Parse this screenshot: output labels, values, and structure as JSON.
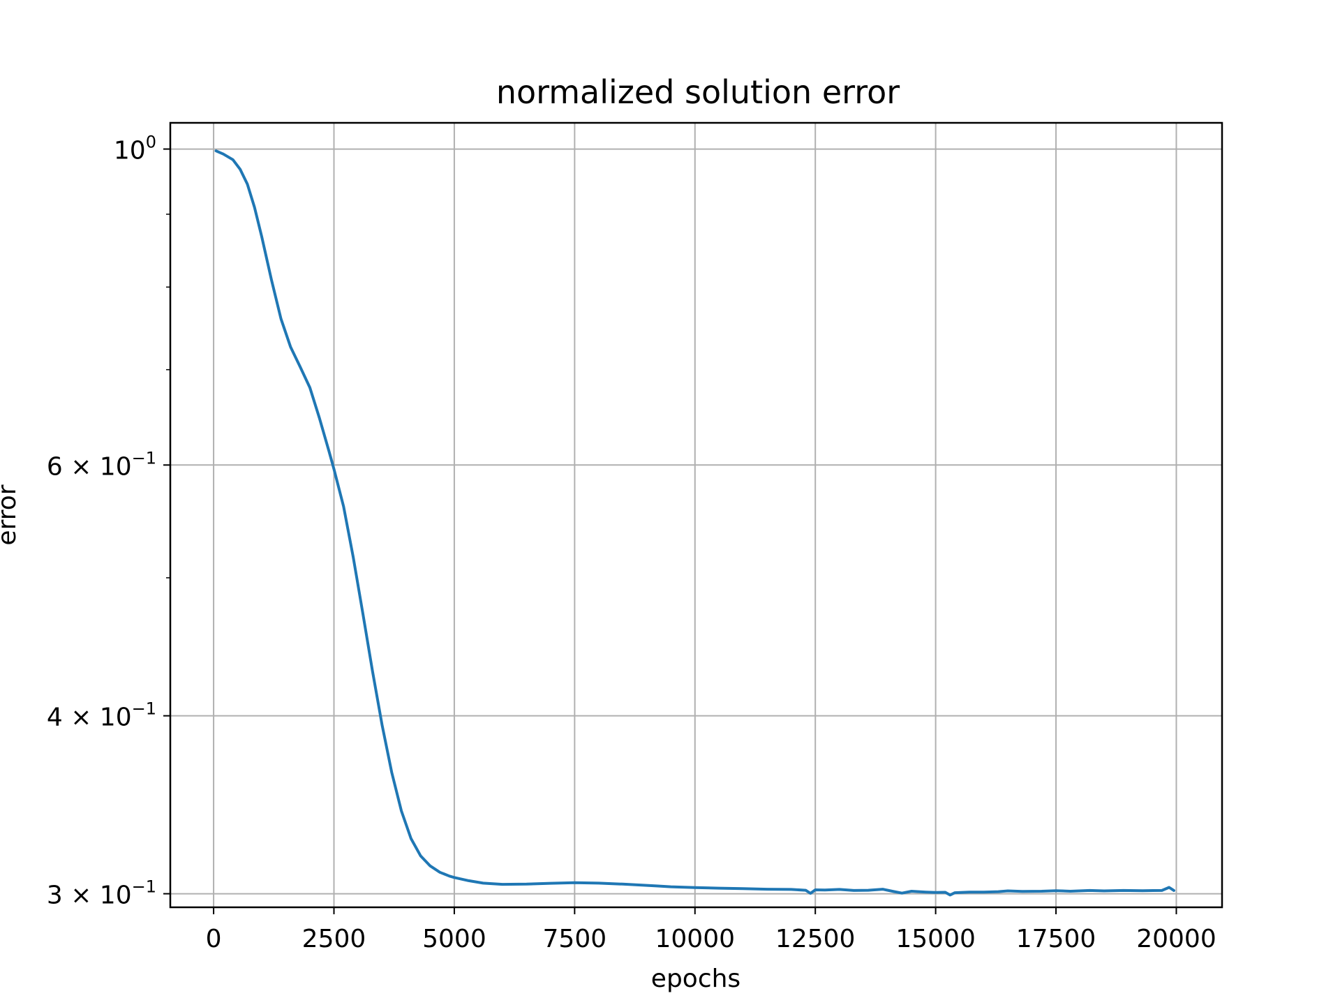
{
  "chart_data": {
    "type": "line",
    "title": "normalized solution error",
    "xlabel": "epochs",
    "ylabel": "error",
    "yscale": "log",
    "grid": true,
    "xlim": [
      -900,
      20950
    ],
    "ylim": [
      0.2935,
      1.0433
    ],
    "x_ticks": [
      {
        "value": 0,
        "label": "0"
      },
      {
        "value": 2500,
        "label": "2500"
      },
      {
        "value": 5000,
        "label": "5000"
      },
      {
        "value": 7500,
        "label": "7500"
      },
      {
        "value": 10000,
        "label": "10000"
      },
      {
        "value": 12500,
        "label": "12500"
      },
      {
        "value": 15000,
        "label": "15000"
      },
      {
        "value": 17500,
        "label": "17500"
      },
      {
        "value": 20000,
        "label": "20000"
      }
    ],
    "y_ticks": [
      {
        "value": 1.0,
        "base": "10",
        "exp": "0"
      },
      {
        "value": 0.6,
        "base": "6 × 10",
        "exp": "−1"
      },
      {
        "value": 0.4,
        "base": "4 × 10",
        "exp": "−1"
      },
      {
        "value": 0.3,
        "base": "3 × 10",
        "exp": "−1"
      }
    ],
    "y_minor_ticks": [
      0.9,
      0.8,
      0.7,
      0.5
    ],
    "line_color": "#1f77b4",
    "series": [
      {
        "x": [
          50,
          200,
          400,
          550,
          700,
          850,
          1000,
          1200,
          1400,
          1600,
          1800,
          2000,
          2200,
          2400,
          2500,
          2700,
          2900,
          3100,
          3300,
          3500,
          3700,
          3900,
          4100,
          4300,
          4500,
          4700,
          4900,
          5000,
          5300,
          5600,
          6000,
          6500,
          7000,
          7500,
          8000,
          8500,
          9000,
          9200,
          9500,
          10000,
          10500,
          11000,
          11500,
          12000,
          12300,
          12400,
          12500,
          12700,
          13000,
          13300,
          13600,
          13900,
          14100,
          14300,
          14500,
          14800,
          15000,
          15200,
          15300,
          15400,
          15700,
          16000,
          16300,
          16500,
          16800,
          17200,
          17500,
          17800,
          18200,
          18500,
          18900,
          19300,
          19700,
          19850,
          19950
        ],
        "y": [
          0.997,
          0.992,
          0.983,
          0.968,
          0.945,
          0.91,
          0.868,
          0.81,
          0.76,
          0.726,
          0.703,
          0.68,
          0.647,
          0.613,
          0.596,
          0.561,
          0.517,
          0.472,
          0.43,
          0.394,
          0.365,
          0.343,
          0.328,
          0.319,
          0.3138,
          0.3106,
          0.3087,
          0.308,
          0.3064,
          0.3052,
          0.3046,
          0.3047,
          0.3051,
          0.3054,
          0.3052,
          0.3047,
          0.3041,
          0.3038,
          0.3034,
          0.303,
          0.3027,
          0.3025,
          0.3022,
          0.3021,
          0.3017,
          0.3002,
          0.3019,
          0.3018,
          0.3021,
          0.3016,
          0.3017,
          0.3022,
          0.3012,
          0.3003,
          0.3012,
          0.3008,
          0.3006,
          0.3007,
          0.2994,
          0.3005,
          0.3008,
          0.3008,
          0.301,
          0.3014,
          0.3011,
          0.3012,
          0.3015,
          0.3012,
          0.3016,
          0.3014,
          0.3016,
          0.3015,
          0.3016,
          0.3031,
          0.3016
        ]
      }
    ]
  }
}
